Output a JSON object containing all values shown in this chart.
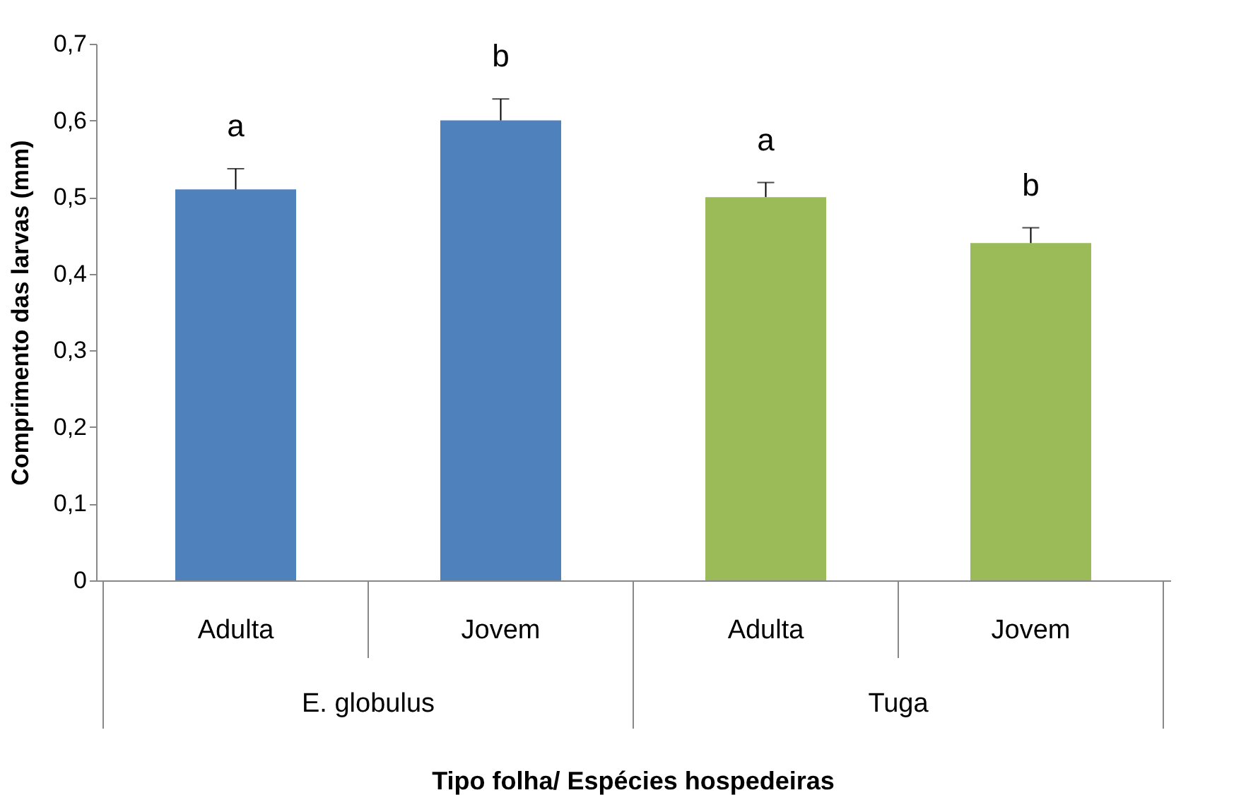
{
  "chart_data": {
    "type": "bar",
    "xlabel": "Tipo folha/ Espécies hospedeiras",
    "ylabel": "Comprimento das larvas (mm)",
    "categories": [
      "Adulta",
      "Jovem",
      "Adulta",
      "Jovem"
    ],
    "values": [
      0.51,
      0.6,
      0.5,
      0.44
    ],
    "colors": [
      "#4f81bd",
      "#4f81bd",
      "#9bbb59",
      "#9bbb59"
    ],
    "errors": [
      [
        0.51,
        0.537
      ],
      [
        0.6,
        0.628
      ],
      [
        0.5,
        0.519
      ],
      [
        0.44,
        0.46
      ]
    ],
    "ylim": [
      0,
      0.7
    ],
    "yticks": [
      {
        "value": 0,
        "label": "0"
      },
      {
        "value": 0.1,
        "label": "0,1"
      },
      {
        "value": 0.2,
        "label": "0,2"
      },
      {
        "value": 0.3,
        "label": "0,3"
      },
      {
        "value": 0.4,
        "label": "0,4"
      },
      {
        "value": 0.5,
        "label": "0,5"
      },
      {
        "value": 0.6,
        "label": "0,6"
      },
      {
        "value": 0.7,
        "label": "0,7"
      }
    ],
    "annotations": [
      "a",
      "b",
      "a",
      "b",
      "E. globulus",
      "Tuga"
    ],
    "grid": false
  }
}
